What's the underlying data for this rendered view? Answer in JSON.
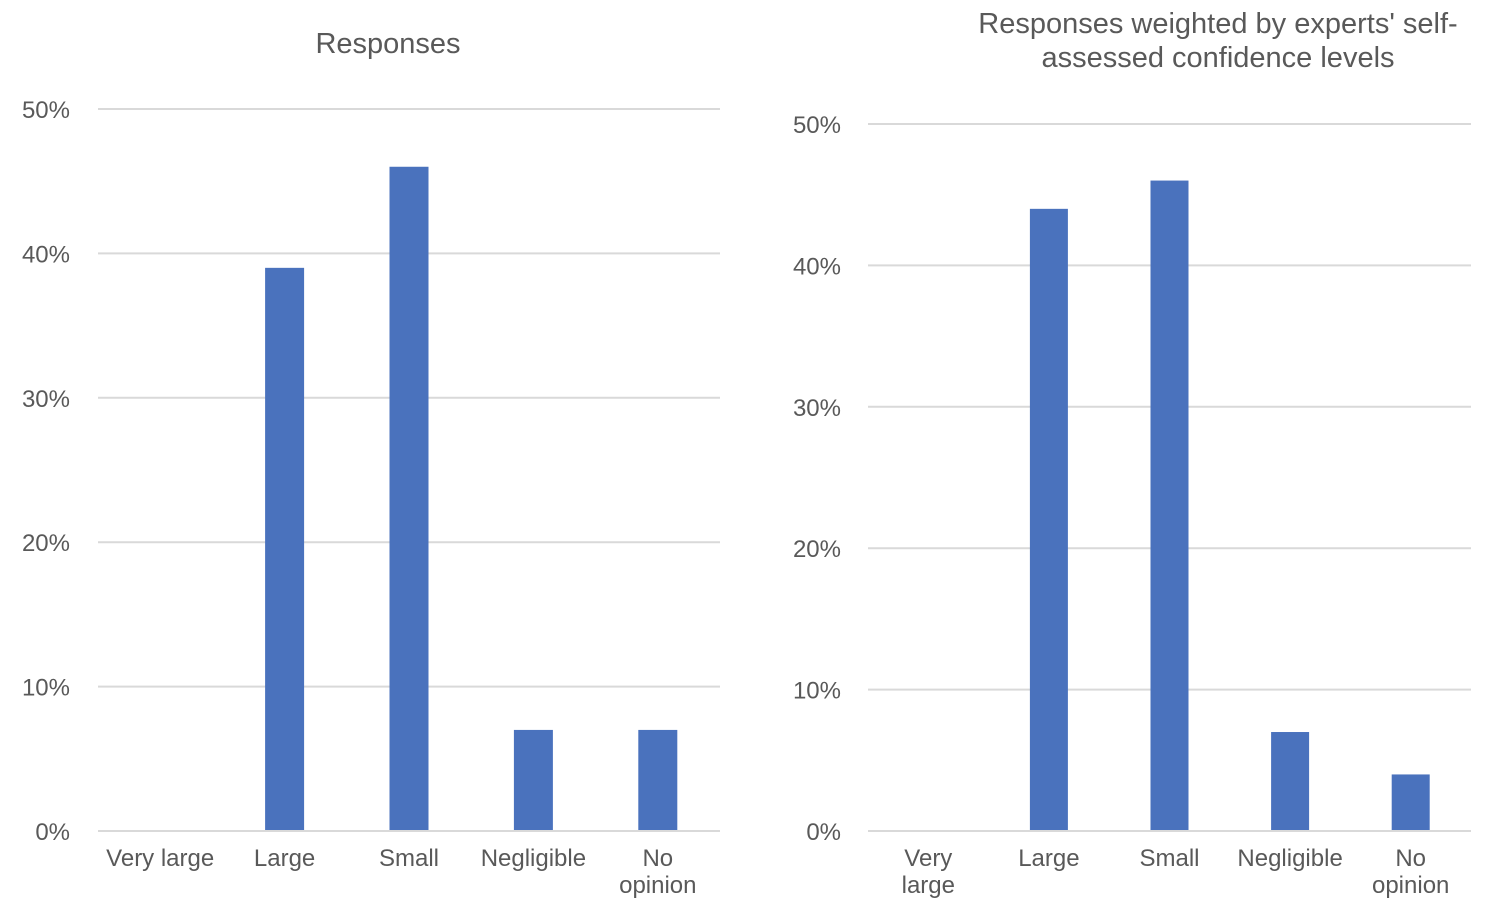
{
  "chart_data": [
    {
      "type": "bar",
      "title": "Responses",
      "categories": [
        "Very large",
        "Large",
        "Small",
        "Negligible",
        "No opinion"
      ],
      "values": [
        0,
        39,
        46,
        7,
        7
      ],
      "value_unit": "%",
      "ylim": [
        0,
        50
      ],
      "yticks": [
        "0%",
        "10%",
        "20%",
        "30%",
        "40%",
        "50%"
      ],
      "grid": true,
      "bar_color": "#4a72bd"
    },
    {
      "type": "bar",
      "title": "Responses weighted by experts' self-assessed confidence levels",
      "categories": [
        "Very large",
        "Large",
        "Small",
        "Negligible",
        "No opinion"
      ],
      "values": [
        0,
        44,
        46,
        7,
        4
      ],
      "value_unit": "%",
      "ylim": [
        0,
        50
      ],
      "yticks": [
        "0%",
        "10%",
        "20%",
        "30%",
        "40%",
        "50%"
      ],
      "grid": true,
      "bar_color": "#4a72bd"
    }
  ]
}
